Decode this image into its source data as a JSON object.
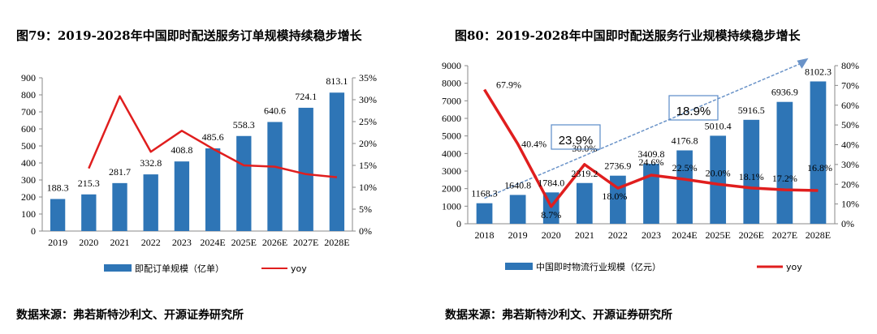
{
  "chart_data": [
    {
      "type": "bar",
      "title": "图79：2019-2028年中国即时配送服务订单规模持续稳步增长",
      "categories": [
        "2019",
        "2020",
        "2021",
        "2022",
        "2023",
        "2024E",
        "2025E",
        "2026E",
        "2027E",
        "2028E"
      ],
      "series": [
        {
          "name": "即配订单规模（亿单）",
          "type": "bar",
          "axis": "left",
          "values": [
            188.3,
            215.3,
            281.7,
            332.8,
            408.8,
            485.6,
            558.3,
            640.6,
            724.1,
            813.1
          ]
        },
        {
          "name": "yoy",
          "type": "line",
          "axis": "right",
          "values": [
            null,
            14.3,
            30.8,
            18.1,
            22.9,
            18.8,
            15.0,
            14.7,
            13.0,
            12.3
          ]
        }
      ],
      "ylim": [
        0,
        900
      ],
      "yticks": [
        "0",
        "100",
        "200",
        "300",
        "400",
        "500",
        "600",
        "700",
        "800",
        "900"
      ],
      "y2lim": [
        0,
        35
      ],
      "y2ticks": [
        "0%",
        "5%",
        "10%",
        "15%",
        "20%",
        "25%",
        "30%",
        "35%"
      ],
      "value_labels": [
        "188.3",
        "215.3",
        "281.7",
        "332.8",
        "408.8",
        "485.6",
        "558.3",
        "640.6",
        "724.1",
        "813.1"
      ],
      "legend_position": "bottom",
      "source": "数据来源：弗若斯特沙利文、开源证券研究所"
    },
    {
      "type": "bar",
      "title": "图80：2019-2028年中国即时配送服务行业规模持续稳步增长",
      "categories": [
        "2018",
        "2019",
        "2020",
        "2021",
        "2022",
        "2023",
        "2024E",
        "2025E",
        "2026E",
        "2027E",
        "2028E"
      ],
      "series": [
        {
          "name": "中国即时物流行业规模（亿元）",
          "type": "bar",
          "axis": "left",
          "values": [
            1168.3,
            1640.8,
            1784.0,
            2319.2,
            2736.9,
            3409.8,
            4176.8,
            5010.4,
            5916.5,
            6936.9,
            8102.3
          ]
        },
        {
          "name": "yoy",
          "type": "line",
          "axis": "right",
          "values": [
            67.9,
            40.4,
            8.7,
            30.0,
            18.0,
            24.6,
            22.5,
            20.0,
            18.1,
            17.2,
            16.8
          ]
        }
      ],
      "ylim": [
        0,
        9000
      ],
      "yticks": [
        "0",
        "1000",
        "2000",
        "3000",
        "4000",
        "5000",
        "6000",
        "7000",
        "8000",
        "9000"
      ],
      "y2lim": [
        0,
        80
      ],
      "y2ticks": [
        "0%",
        "10%",
        "20%",
        "30%",
        "40%",
        "50%",
        "60%",
        "70%",
        "80%"
      ],
      "bar_labels": [
        "1168.3",
        "1640.8",
        "1784.0",
        "2319.2",
        "2736.9",
        "3409.8",
        "4176.8",
        "5010.4",
        "5916.5",
        "6936.9",
        "8102.3"
      ],
      "yoy_labels": [
        "67.9%",
        "40.4%",
        "8.7%",
        "30.0%",
        "18.0%",
        "24.6%",
        "22.5%",
        "20.0%",
        "18.1%",
        "17.2%",
        "16.8%"
      ],
      "annotations": [
        "23.9%",
        "18.9%"
      ],
      "legend_position": "bottom",
      "source": "数据来源：弗若斯特沙利文、开源证券研究所"
    }
  ],
  "colors": {
    "bar": "#2E75B6",
    "line": "#E01E1E",
    "arrow": "#6A93C8",
    "box": "#5B8BC9"
  }
}
